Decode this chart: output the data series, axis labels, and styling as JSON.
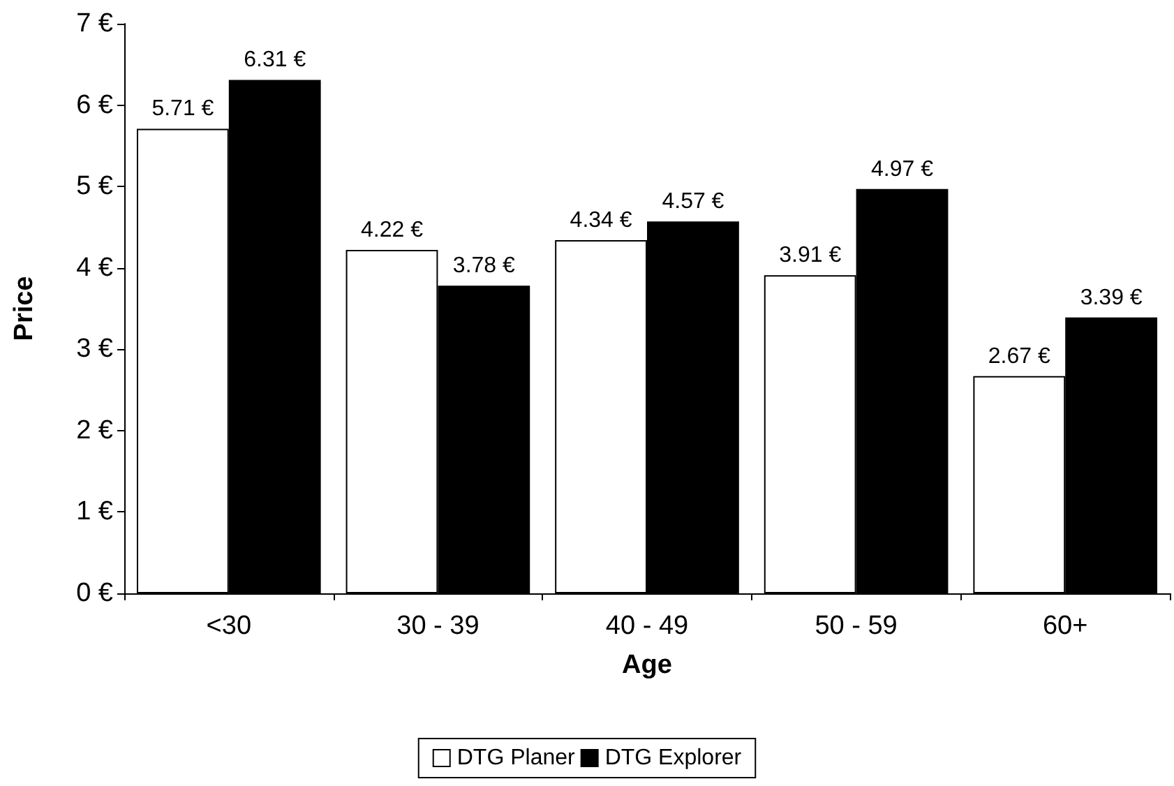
{
  "chart_data": {
    "type": "bar",
    "xlabel": "Age",
    "ylabel": "Price",
    "categories": [
      "<30",
      "30 - 39",
      "40 - 49",
      "50 - 59",
      "60+"
    ],
    "series": [
      {
        "name": "DTG Planer",
        "color": "#ffffff",
        "values": [
          5.71,
          4.22,
          4.34,
          3.91,
          2.67
        ],
        "value_labels": [
          "5.71 €",
          "4.22 €",
          "4.34 €",
          "3.91 €",
          "2.67 €"
        ]
      },
      {
        "name": "DTG Explorer",
        "color": "#000000",
        "values": [
          6.31,
          3.78,
          4.57,
          4.97,
          3.39
        ],
        "value_labels": [
          "6.31 €",
          "3.78 €",
          "4.57 €",
          "4.97 €",
          "3.39 €"
        ]
      }
    ],
    "ylim": [
      0,
      7
    ],
    "yticks": [
      {
        "value": 0,
        "label": "0 €"
      },
      {
        "value": 1,
        "label": "1 €"
      },
      {
        "value": 2,
        "label": "2 €"
      },
      {
        "value": 3,
        "label": "3 €"
      },
      {
        "value": 4,
        "label": "4 €"
      },
      {
        "value": 5,
        "label": "5 €"
      },
      {
        "value": 6,
        "label": "6 €"
      },
      {
        "value": 7,
        "label": "7 €"
      }
    ],
    "grid": false,
    "legend": "bottom"
  }
}
